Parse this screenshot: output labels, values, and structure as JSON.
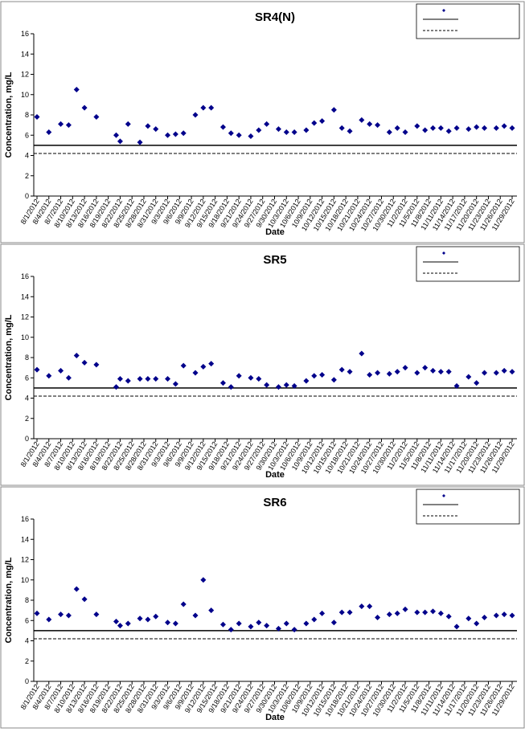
{
  "chart_data": [
    {
      "type": "scatter",
      "title": "SR4(N)",
      "x_label": "Date",
      "y_label": "Concentration, mg/L",
      "color": "#00008b",
      "ylim": [
        0,
        16
      ],
      "yticks": [
        0,
        2,
        4,
        6,
        8,
        10,
        12,
        14,
        16
      ],
      "xlim": [
        "8/1/2012",
        "11/29/2012"
      ],
      "xticks": [
        "8/1/2012",
        "8/4/2012",
        "8/7/2012",
        "8/10/2012",
        "8/13/2012",
        "8/16/2012",
        "8/19/2012",
        "8/22/2012",
        "8/25/2012",
        "8/28/2012",
        "8/31/2012",
        "9/3/2012",
        "9/6/2012",
        "9/9/2012",
        "9/12/2012",
        "9/15/2012",
        "9/18/2012",
        "9/21/2012",
        "9/24/2012",
        "9/27/2012",
        "9/30/2012",
        "10/3/2012",
        "10/6/2012",
        "10/9/2012",
        "10/12/2012",
        "10/15/2012",
        "10/18/2012",
        "10/21/2012",
        "10/24/2012",
        "10/27/2012",
        "10/30/2012",
        "11/2/2012",
        "11/5/2012",
        "11/8/2012",
        "11/11/2012",
        "11/14/2012",
        "11/17/2012",
        "11/20/2012",
        "11/23/2012",
        "11/26/2012",
        "11/29/2012"
      ],
      "hlines": [
        {
          "value": 5,
          "style": "solid"
        },
        {
          "value": 4.2,
          "style": "dashed"
        }
      ],
      "x": [
        "8/1/2012",
        "8/4/2012",
        "8/7/2012",
        "8/9/2012",
        "8/11/2012",
        "8/13/2012",
        "8/16/2012",
        "8/21/2012",
        "8/22/2012",
        "8/24/2012",
        "8/27/2012",
        "8/29/2012",
        "8/31/2012",
        "9/3/2012",
        "9/5/2012",
        "9/7/2012",
        "9/10/2012",
        "9/12/2012",
        "9/14/2012",
        "9/17/2012",
        "9/19/2012",
        "9/21/2012",
        "9/24/2012",
        "9/26/2012",
        "9/28/2012",
        "10/1/2012",
        "10/3/2012",
        "10/5/2012",
        "10/8/2012",
        "10/10/2012",
        "10/12/2012",
        "10/15/2012",
        "10/17/2012",
        "10/19/2012",
        "10/22/2012",
        "10/24/2012",
        "10/26/2012",
        "10/29/2012",
        "10/31/2012",
        "11/2/2012",
        "11/5/2012",
        "11/7/2012",
        "11/9/2012",
        "11/11/2012",
        "11/13/2012",
        "11/15/2012",
        "11/18/2012",
        "11/20/2012",
        "11/22/2012",
        "11/25/2012",
        "11/27/2012",
        "11/29/2012"
      ],
      "values": [
        7.8,
        6.3,
        7.1,
        7.0,
        10.5,
        8.7,
        7.8,
        6.0,
        5.4,
        7.1,
        5.3,
        6.9,
        6.6,
        6.0,
        6.1,
        6.2,
        8.0,
        8.7,
        8.7,
        6.8,
        6.2,
        6.0,
        5.9,
        6.5,
        7.1,
        6.6,
        6.3,
        6.3,
        6.5,
        7.2,
        7.4,
        8.5,
        6.7,
        6.4,
        7.5,
        7.1,
        7.0,
        6.3,
        6.7,
        6.3,
        6.9,
        6.5,
        6.7,
        6.7,
        6.4,
        6.7,
        6.6,
        6.8,
        6.7,
        6.7,
        6.9,
        6.7
      ]
    },
    {
      "type": "scatter",
      "title": "SR5",
      "x_label": "Date",
      "y_label": "Concentration, mg/L",
      "color": "#00008b",
      "ylim": [
        0,
        16
      ],
      "yticks": [
        0,
        2,
        4,
        6,
        8,
        10,
        12,
        14,
        16
      ],
      "xlim": [
        "8/1/2012",
        "11/29/2012"
      ],
      "xticks": [
        "8/1/2012",
        "8/4/2012",
        "8/7/2012",
        "8/10/2012",
        "8/13/2012",
        "8/16/2012",
        "8/19/2012",
        "8/22/2012",
        "8/25/2012",
        "8/28/2012",
        "8/31/2012",
        "9/3/2012",
        "9/6/2012",
        "9/9/2012",
        "9/12/2012",
        "9/15/2012",
        "9/18/2012",
        "9/21/2012",
        "9/24/2012",
        "9/27/2012",
        "9/30/2012",
        "10/3/2012",
        "10/6/2012",
        "10/9/2012",
        "10/12/2012",
        "10/15/2012",
        "10/18/2012",
        "10/21/2012",
        "10/24/2012",
        "10/27/2012",
        "10/30/2012",
        "11/2/2012",
        "11/5/2012",
        "11/8/2012",
        "11/11/2012",
        "11/14/2012",
        "11/17/2012",
        "11/20/2012",
        "11/23/2012",
        "11/26/2012",
        "11/29/2012"
      ],
      "hlines": [
        {
          "value": 5,
          "style": "solid"
        },
        {
          "value": 4.2,
          "style": "dashed"
        }
      ],
      "x": [
        "8/1/2012",
        "8/4/2012",
        "8/7/2012",
        "8/9/2012",
        "8/11/2012",
        "8/13/2012",
        "8/16/2012",
        "8/21/2012",
        "8/22/2012",
        "8/24/2012",
        "8/27/2012",
        "8/29/2012",
        "8/31/2012",
        "9/3/2012",
        "9/5/2012",
        "9/7/2012",
        "9/10/2012",
        "9/12/2012",
        "9/14/2012",
        "9/17/2012",
        "9/19/2012",
        "9/21/2012",
        "9/24/2012",
        "9/26/2012",
        "9/28/2012",
        "10/1/2012",
        "10/3/2012",
        "10/5/2012",
        "10/8/2012",
        "10/10/2012",
        "10/12/2012",
        "10/15/2012",
        "10/17/2012",
        "10/19/2012",
        "10/22/2012",
        "10/24/2012",
        "10/26/2012",
        "10/29/2012",
        "10/31/2012",
        "11/2/2012",
        "11/5/2012",
        "11/7/2012",
        "11/9/2012",
        "11/11/2012",
        "11/13/2012",
        "11/15/2012",
        "11/18/2012",
        "11/20/2012",
        "11/22/2012",
        "11/25/2012",
        "11/27/2012",
        "11/29/2012"
      ],
      "values": [
        6.8,
        6.2,
        6.7,
        6.0,
        8.2,
        7.5,
        7.3,
        5.1,
        5.9,
        5.7,
        5.9,
        5.9,
        5.9,
        5.9,
        5.4,
        7.2,
        6.5,
        7.1,
        7.4,
        5.5,
        5.1,
        6.2,
        6.0,
        5.9,
        5.3,
        5.1,
        5.3,
        5.2,
        5.7,
        6.2,
        6.3,
        5.8,
        6.8,
        6.6,
        8.4,
        6.3,
        6.5,
        6.4,
        6.6,
        7.0,
        6.5,
        7.0,
        6.7,
        6.6,
        6.6,
        5.2,
        6.1,
        5.5,
        6.5,
        6.5,
        6.7,
        6.6
      ]
    },
    {
      "type": "scatter",
      "title": "SR6",
      "x_label": "Date",
      "y_label": "Concentration, mg/L",
      "color": "#00008b",
      "ylim": [
        0,
        16
      ],
      "yticks": [
        0,
        2,
        4,
        6,
        8,
        10,
        12,
        14,
        16
      ],
      "xlim": [
        "8/1/2012",
        "11/29/2012"
      ],
      "xticks": [
        "8/1/2012",
        "8/4/2012",
        "8/7/2012",
        "8/10/2012",
        "8/13/2012",
        "8/16/2012",
        "8/19/2012",
        "8/22/2012",
        "8/25/2012",
        "8/28/2012",
        "8/31/2012",
        "9/3/2012",
        "9/6/2012",
        "9/9/2012",
        "9/12/2012",
        "9/15/2012",
        "9/18/2012",
        "9/21/2012",
        "9/24/2012",
        "9/27/2012",
        "9/30/2012",
        "10/3/2012",
        "10/6/2012",
        "10/9/2012",
        "10/12/2012",
        "10/15/2012",
        "10/18/2012",
        "10/21/2012",
        "10/24/2012",
        "10/27/2012",
        "10/30/2012",
        "11/2/2012",
        "11/5/2012",
        "11/8/2012",
        "11/11/2012",
        "11/14/2012",
        "11/17/2012",
        "11/20/2012",
        "11/23/2012",
        "11/26/2012",
        "11/29/2012"
      ],
      "hlines": [
        {
          "value": 5,
          "style": "solid"
        },
        {
          "value": 4.2,
          "style": "dashed"
        }
      ],
      "x": [
        "8/1/2012",
        "8/4/2012",
        "8/7/2012",
        "8/9/2012",
        "8/11/2012",
        "8/13/2012",
        "8/16/2012",
        "8/21/2012",
        "8/22/2012",
        "8/24/2012",
        "8/27/2012",
        "8/29/2012",
        "8/31/2012",
        "9/3/2012",
        "9/5/2012",
        "9/7/2012",
        "9/10/2012",
        "9/12/2012",
        "9/14/2012",
        "9/17/2012",
        "9/19/2012",
        "9/21/2012",
        "9/24/2012",
        "9/26/2012",
        "9/28/2012",
        "10/1/2012",
        "10/3/2012",
        "10/5/2012",
        "10/8/2012",
        "10/10/2012",
        "10/12/2012",
        "10/15/2012",
        "10/17/2012",
        "10/19/2012",
        "10/22/2012",
        "10/24/2012",
        "10/26/2012",
        "10/29/2012",
        "10/31/2012",
        "11/2/2012",
        "11/5/2012",
        "11/7/2012",
        "11/9/2012",
        "11/11/2012",
        "11/13/2012",
        "11/15/2012",
        "11/18/2012",
        "11/20/2012",
        "11/22/2012",
        "11/25/2012",
        "11/27/2012",
        "11/29/2012"
      ],
      "values": [
        6.7,
        6.1,
        6.6,
        6.5,
        9.1,
        8.1,
        6.6,
        5.9,
        5.5,
        5.7,
        6.2,
        6.1,
        6.4,
        5.8,
        5.7,
        7.6,
        6.5,
        10.0,
        7.0,
        5.6,
        5.1,
        5.7,
        5.4,
        5.8,
        5.5,
        5.2,
        5.7,
        5.1,
        5.7,
        6.1,
        6.7,
        5.8,
        6.8,
        6.8,
        7.4,
        7.4,
        6.3,
        6.6,
        6.7,
        7.1,
        6.8,
        6.8,
        6.9,
        6.7,
        6.4,
        5.4,
        6.2,
        5.7,
        6.3,
        6.5,
        6.6,
        6.5
      ]
    }
  ]
}
